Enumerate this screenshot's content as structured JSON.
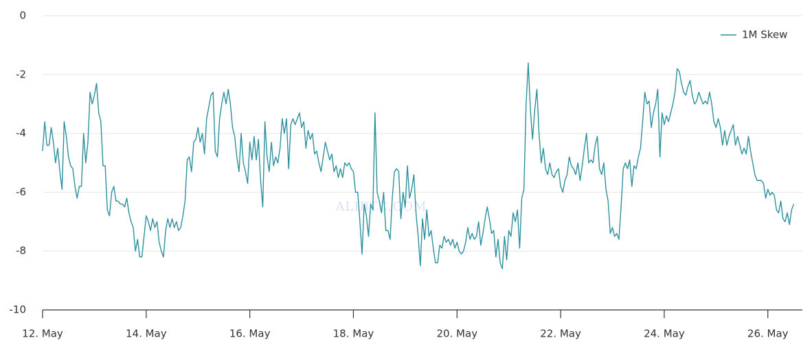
{
  "chart_data": {
    "type": "line",
    "watermark": "ALIBTC.COM",
    "x": [
      0,
      1,
      2,
      3,
      4,
      5,
      6,
      7,
      8,
      9,
      10,
      11,
      12,
      13,
      14,
      15,
      16,
      17,
      18,
      19,
      20,
      21,
      22,
      23,
      24,
      25,
      26,
      27,
      28,
      29,
      30,
      31,
      32,
      33,
      34,
      35,
      36,
      37,
      38,
      39,
      40,
      41,
      42,
      43,
      44,
      45,
      46,
      47,
      48,
      49,
      50,
      51,
      52,
      53,
      54,
      55,
      56,
      57,
      58,
      59,
      60,
      61,
      62,
      63,
      64,
      65,
      66,
      67,
      68,
      69,
      70,
      71,
      72,
      73,
      74,
      75,
      76,
      77,
      78,
      79,
      80,
      81,
      82,
      83,
      84,
      85,
      86,
      87,
      88,
      89,
      90,
      91,
      92,
      93,
      94,
      95,
      96,
      97,
      98,
      99,
      100,
      101,
      102,
      103,
      104,
      105,
      106,
      107,
      108,
      109,
      110,
      111,
      112,
      113,
      114,
      115,
      116,
      117,
      118,
      119,
      120,
      121,
      122,
      123,
      124,
      125,
      126,
      127,
      128,
      129,
      130,
      131,
      132,
      133,
      134,
      135,
      136,
      137,
      138,
      139,
      140,
      141,
      142,
      143,
      144,
      145,
      146,
      147,
      148,
      149,
      150,
      151,
      152,
      153,
      154,
      155,
      156,
      157,
      158,
      159,
      160,
      161,
      162,
      163,
      164,
      165,
      166,
      167,
      168,
      169,
      170,
      171,
      172,
      173,
      174,
      175,
      176,
      177,
      178,
      179,
      180,
      181,
      182,
      183,
      184,
      185,
      186,
      187,
      188,
      189,
      190,
      191,
      192,
      193,
      194,
      195,
      196,
      197,
      198,
      199,
      200,
      201,
      202,
      203,
      204,
      205,
      206,
      207,
      208,
      209,
      210,
      211,
      212,
      213,
      214,
      215,
      216,
      217,
      218,
      219,
      220,
      221,
      222,
      223,
      224,
      225,
      226,
      227,
      228,
      229,
      230,
      231,
      232,
      233,
      234,
      235,
      236,
      237,
      238,
      239,
      240,
      241,
      242,
      243,
      244,
      245,
      246,
      247,
      248,
      249,
      250,
      251,
      252,
      253,
      254,
      255,
      256,
      257,
      258,
      259,
      260,
      261,
      262,
      263,
      264,
      265,
      266,
      267,
      268,
      269,
      270,
      271,
      272,
      273,
      274,
      275,
      276,
      277,
      278,
      279,
      280,
      281,
      282,
      283,
      284,
      285,
      286,
      287,
      288,
      289,
      290,
      291,
      292,
      293,
      294,
      295,
      296,
      297,
      298,
      299,
      300,
      301,
      302,
      303,
      304,
      305,
      306,
      307,
      308,
      309,
      310,
      311,
      312,
      313,
      314,
      315,
      316,
      317,
      318,
      319,
      320,
      321,
      322,
      323,
      324,
      325,
      326,
      327,
      328,
      329,
      330,
      331,
      332,
      333,
      334,
      335,
      336,
      337,
      338,
      339,
      340,
      341,
      342,
      343,
      344,
      345,
      346,
      347,
      348
    ],
    "series": [
      {
        "name": "1M Skew",
        "color": "#2b909d",
        "values": [
          -4.6,
          -3.6,
          -4.4,
          -4.4,
          -3.8,
          -4.3,
          -5.0,
          -4.5,
          -5.3,
          -5.9,
          -3.6,
          -4.1,
          -4.8,
          -5.1,
          -5.2,
          -5.8,
          -6.2,
          -5.8,
          -5.8,
          -4.0,
          -5.0,
          -4.3,
          -2.6,
          -3.0,
          -2.7,
          -2.3,
          -3.3,
          -3.6,
          -5.1,
          -5.1,
          -6.6,
          -6.8,
          -6.0,
          -5.8,
          -6.3,
          -6.3,
          -6.4,
          -6.4,
          -6.5,
          -6.2,
          -6.7,
          -7.0,
          -7.2,
          -8.0,
          -7.6,
          -8.2,
          -8.2,
          -7.5,
          -6.8,
          -7.0,
          -7.3,
          -6.9,
          -7.2,
          -7.0,
          -7.7,
          -8.0,
          -8.2,
          -7.3,
          -6.9,
          -7.2,
          -6.9,
          -7.2,
          -7.0,
          -7.3,
          -7.2,
          -6.8,
          -6.3,
          -4.9,
          -4.8,
          -5.3,
          -4.3,
          -4.2,
          -3.8,
          -4.3,
          -4.0,
          -4.7,
          -3.5,
          -3.1,
          -2.7,
          -2.6,
          -4.6,
          -4.8,
          -3.5,
          -3.0,
          -2.6,
          -3.0,
          -2.5,
          -3.0,
          -3.8,
          -4.1,
          -4.8,
          -5.3,
          -4.0,
          -5.0,
          -5.3,
          -5.7,
          -4.3,
          -4.9,
          -4.1,
          -4.9,
          -4.2,
          -5.6,
          -6.5,
          -3.6,
          -4.8,
          -5.3,
          -4.3,
          -5.1,
          -4.8,
          -5.0,
          -4.5,
          -3.5,
          -4.0,
          -3.5,
          -5.2,
          -3.7,
          -3.5,
          -3.7,
          -3.5,
          -3.3,
          -3.8,
          -3.6,
          -4.5,
          -3.9,
          -4.2,
          -4.0,
          -4.7,
          -4.6,
          -5.0,
          -5.3,
          -4.8,
          -4.3,
          -4.6,
          -4.9,
          -4.7,
          -5.3,
          -5.1,
          -5.5,
          -5.2,
          -5.5,
          -5.0,
          -5.1,
          -5.0,
          -5.2,
          -5.3,
          -6.0,
          -6.0,
          -7.0,
          -8.1,
          -6.4,
          -6.8,
          -7.5,
          -6.4,
          -6.6,
          -3.3,
          -6.0,
          -6.3,
          -6.7,
          -6.0,
          -7.3,
          -7.3,
          -7.6,
          -6.2,
          -5.3,
          -5.2,
          -5.3,
          -6.9,
          -6.0,
          -6.5,
          -5.1,
          -6.2,
          -5.9,
          -5.4,
          -6.7,
          -7.5,
          -8.5,
          -6.9,
          -7.6,
          -6.6,
          -7.5,
          -7.3,
          -7.9,
          -8.4,
          -8.4,
          -7.8,
          -7.9,
          -7.5,
          -7.7,
          -7.6,
          -7.8,
          -7.6,
          -7.9,
          -7.7,
          -8.0,
          -8.1,
          -8.0,
          -7.7,
          -7.2,
          -7.6,
          -7.4,
          -7.6,
          -7.5,
          -7.0,
          -7.8,
          -7.4,
          -6.9,
          -6.5,
          -6.9,
          -7.4,
          -7.3,
          -8.2,
          -7.6,
          -8.4,
          -8.6,
          -7.5,
          -8.3,
          -7.3,
          -7.5,
          -6.7,
          -7.0,
          -6.6,
          -7.9,
          -6.2,
          -5.9,
          -3.0,
          -1.6,
          -3.2,
          -4.2,
          -3.2,
          -2.5,
          -4.0,
          -5.0,
          -4.5,
          -5.2,
          -5.4,
          -5.0,
          -5.4,
          -5.5,
          -5.3,
          -5.2,
          -5.8,
          -6.0,
          -5.6,
          -5.4,
          -4.8,
          -5.1,
          -5.2,
          -5.4,
          -5.0,
          -5.6,
          -5.1,
          -4.5,
          -4.0,
          -5.0,
          -4.9,
          -5.0,
          -4.4,
          -4.1,
          -5.2,
          -5.4,
          -5.0,
          -5.9,
          -6.3,
          -7.4,
          -7.2,
          -7.5,
          -7.4,
          -7.6,
          -6.5,
          -5.2,
          -5.0,
          -5.2,
          -4.9,
          -5.8,
          -5.1,
          -5.2,
          -4.8,
          -4.5,
          -3.6,
          -2.6,
          -3.0,
          -2.9,
          -3.8,
          -3.3,
          -3.0,
          -2.5,
          -4.8,
          -3.3,
          -3.7,
          -3.4,
          -3.6,
          -3.3,
          -3.0,
          -2.6,
          -1.8,
          -1.9,
          -2.3,
          -2.6,
          -2.7,
          -2.4,
          -2.2,
          -2.7,
          -3.0,
          -2.9,
          -2.6,
          -2.8,
          -3.0,
          -2.9,
          -3.0,
          -2.6,
          -3.0,
          -3.6,
          -3.8,
          -3.5,
          -3.8,
          -4.4,
          -3.9,
          -4.4,
          -4.1,
          -3.9,
          -3.7,
          -4.4,
          -4.1,
          -4.4,
          -4.7,
          -4.5,
          -4.7,
          -4.1,
          -4.6,
          -5.0,
          -5.4,
          -5.6,
          -5.6,
          -5.6,
          -5.7,
          -6.2,
          -5.9,
          -6.1,
          -6.0,
          -6.1,
          -6.6,
          -6.7,
          -6.3,
          -6.9,
          -7.0,
          -6.7,
          -7.1,
          -6.6,
          -6.4
        ]
      }
    ],
    "xlim": [
      0,
      352
    ],
    "xticks": [
      {
        "value": 0,
        "label": "12. May"
      },
      {
        "value": 48,
        "label": "14. May"
      },
      {
        "value": 96,
        "label": "16. May"
      },
      {
        "value": 144,
        "label": "18. May"
      },
      {
        "value": 192,
        "label": "20. May"
      },
      {
        "value": 240,
        "label": "22. May"
      },
      {
        "value": 288,
        "label": "24. May"
      },
      {
        "value": 336,
        "label": "26. May"
      }
    ],
    "ylim": [
      -10,
      0
    ],
    "yticks": [
      -10,
      -8,
      -6,
      -4,
      -2,
      0
    ],
    "grid": true,
    "legend": "top-right"
  }
}
